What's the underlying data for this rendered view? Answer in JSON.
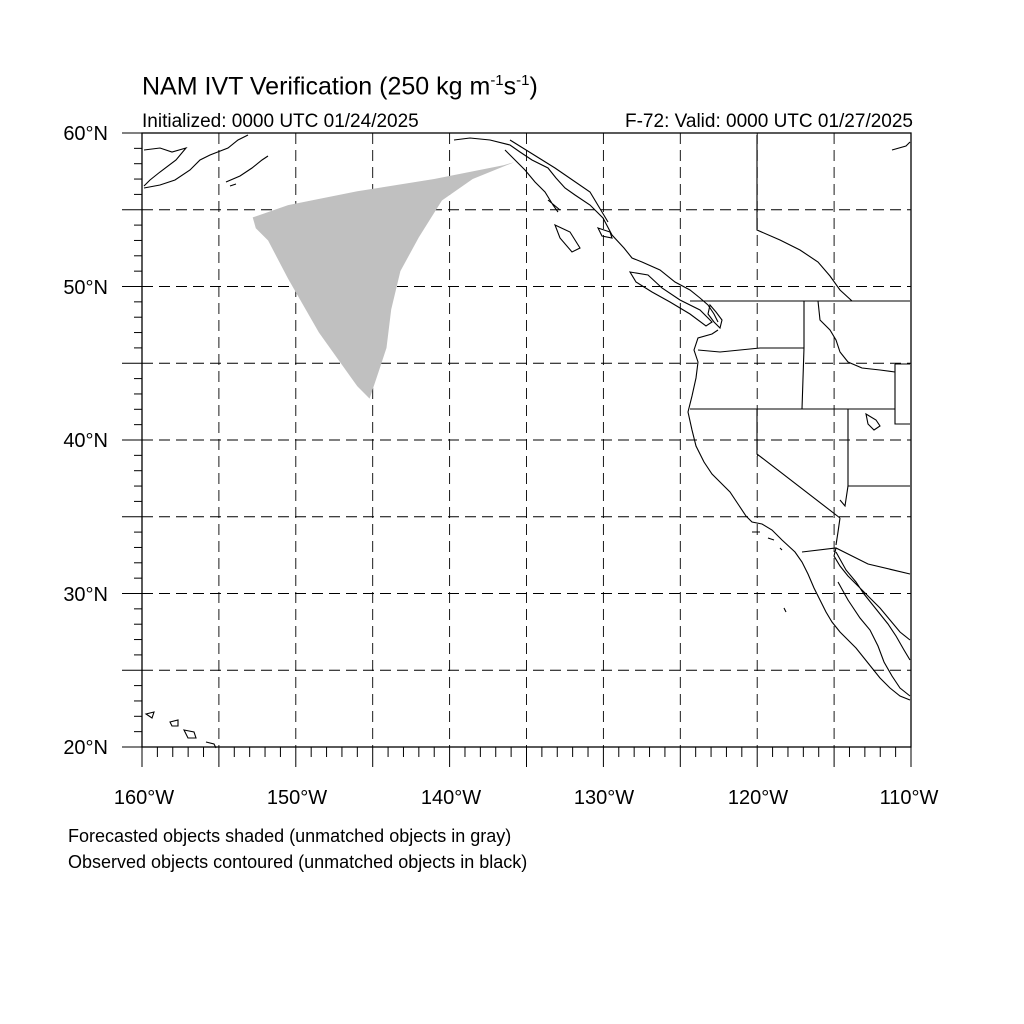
{
  "title": {
    "main": "NAM IVT Verification",
    "units_prefix": "(250 kg m",
    "units_exp1": "-1",
    "units_mid": "s",
    "units_exp2": "-1",
    "units_suffix": ")"
  },
  "subtitle": {
    "initialized": "Initialized: 0000 UTC 01/24/2025",
    "valid": "F-72: Valid: 0000 UTC 01/27/2025"
  },
  "axes": {
    "lat_labels": [
      "60°N",
      "50°N",
      "40°N",
      "30°N",
      "20°N"
    ],
    "lon_labels": [
      "160°W",
      "150°W",
      "140°W",
      "130°W",
      "120°W",
      "110°W"
    ],
    "lat_range": [
      20,
      60
    ],
    "lon_range": [
      -160,
      -110
    ],
    "gridline_interval_deg": 5,
    "gridlines": "dashed"
  },
  "legend": {
    "line1": "Forecasted objects shaded (unmatched objects in gray)",
    "line2": "Observed objects contoured (unmatched objects in black)"
  },
  "forecast_object": {
    "status": "unmatched",
    "fill_color": "#c0c0c0",
    "vertices_lonlat": [
      [
        -152.8,
        54.5
      ],
      [
        -150.5,
        55.3
      ],
      [
        -146.0,
        56.2
      ],
      [
        -141.0,
        57.0
      ],
      [
        -136.5,
        57.9
      ],
      [
        -135.8,
        58.1
      ],
      [
        -138.5,
        57.0
      ],
      [
        -140.5,
        55.6
      ],
      [
        -142.0,
        53.2
      ],
      [
        -143.2,
        51.0
      ],
      [
        -143.8,
        48.5
      ],
      [
        -144.1,
        46.0
      ],
      [
        -144.6,
        44.5
      ],
      [
        -145.2,
        42.7
      ],
      [
        -146.0,
        43.5
      ],
      [
        -148.5,
        47.0
      ],
      [
        -150.5,
        50.5
      ],
      [
        -151.8,
        53.0
      ],
      [
        -152.6,
        53.8
      ]
    ]
  },
  "colors": {
    "forecast_shade": "#c0c0c0",
    "lines": "#000000",
    "background": "#ffffff"
  }
}
